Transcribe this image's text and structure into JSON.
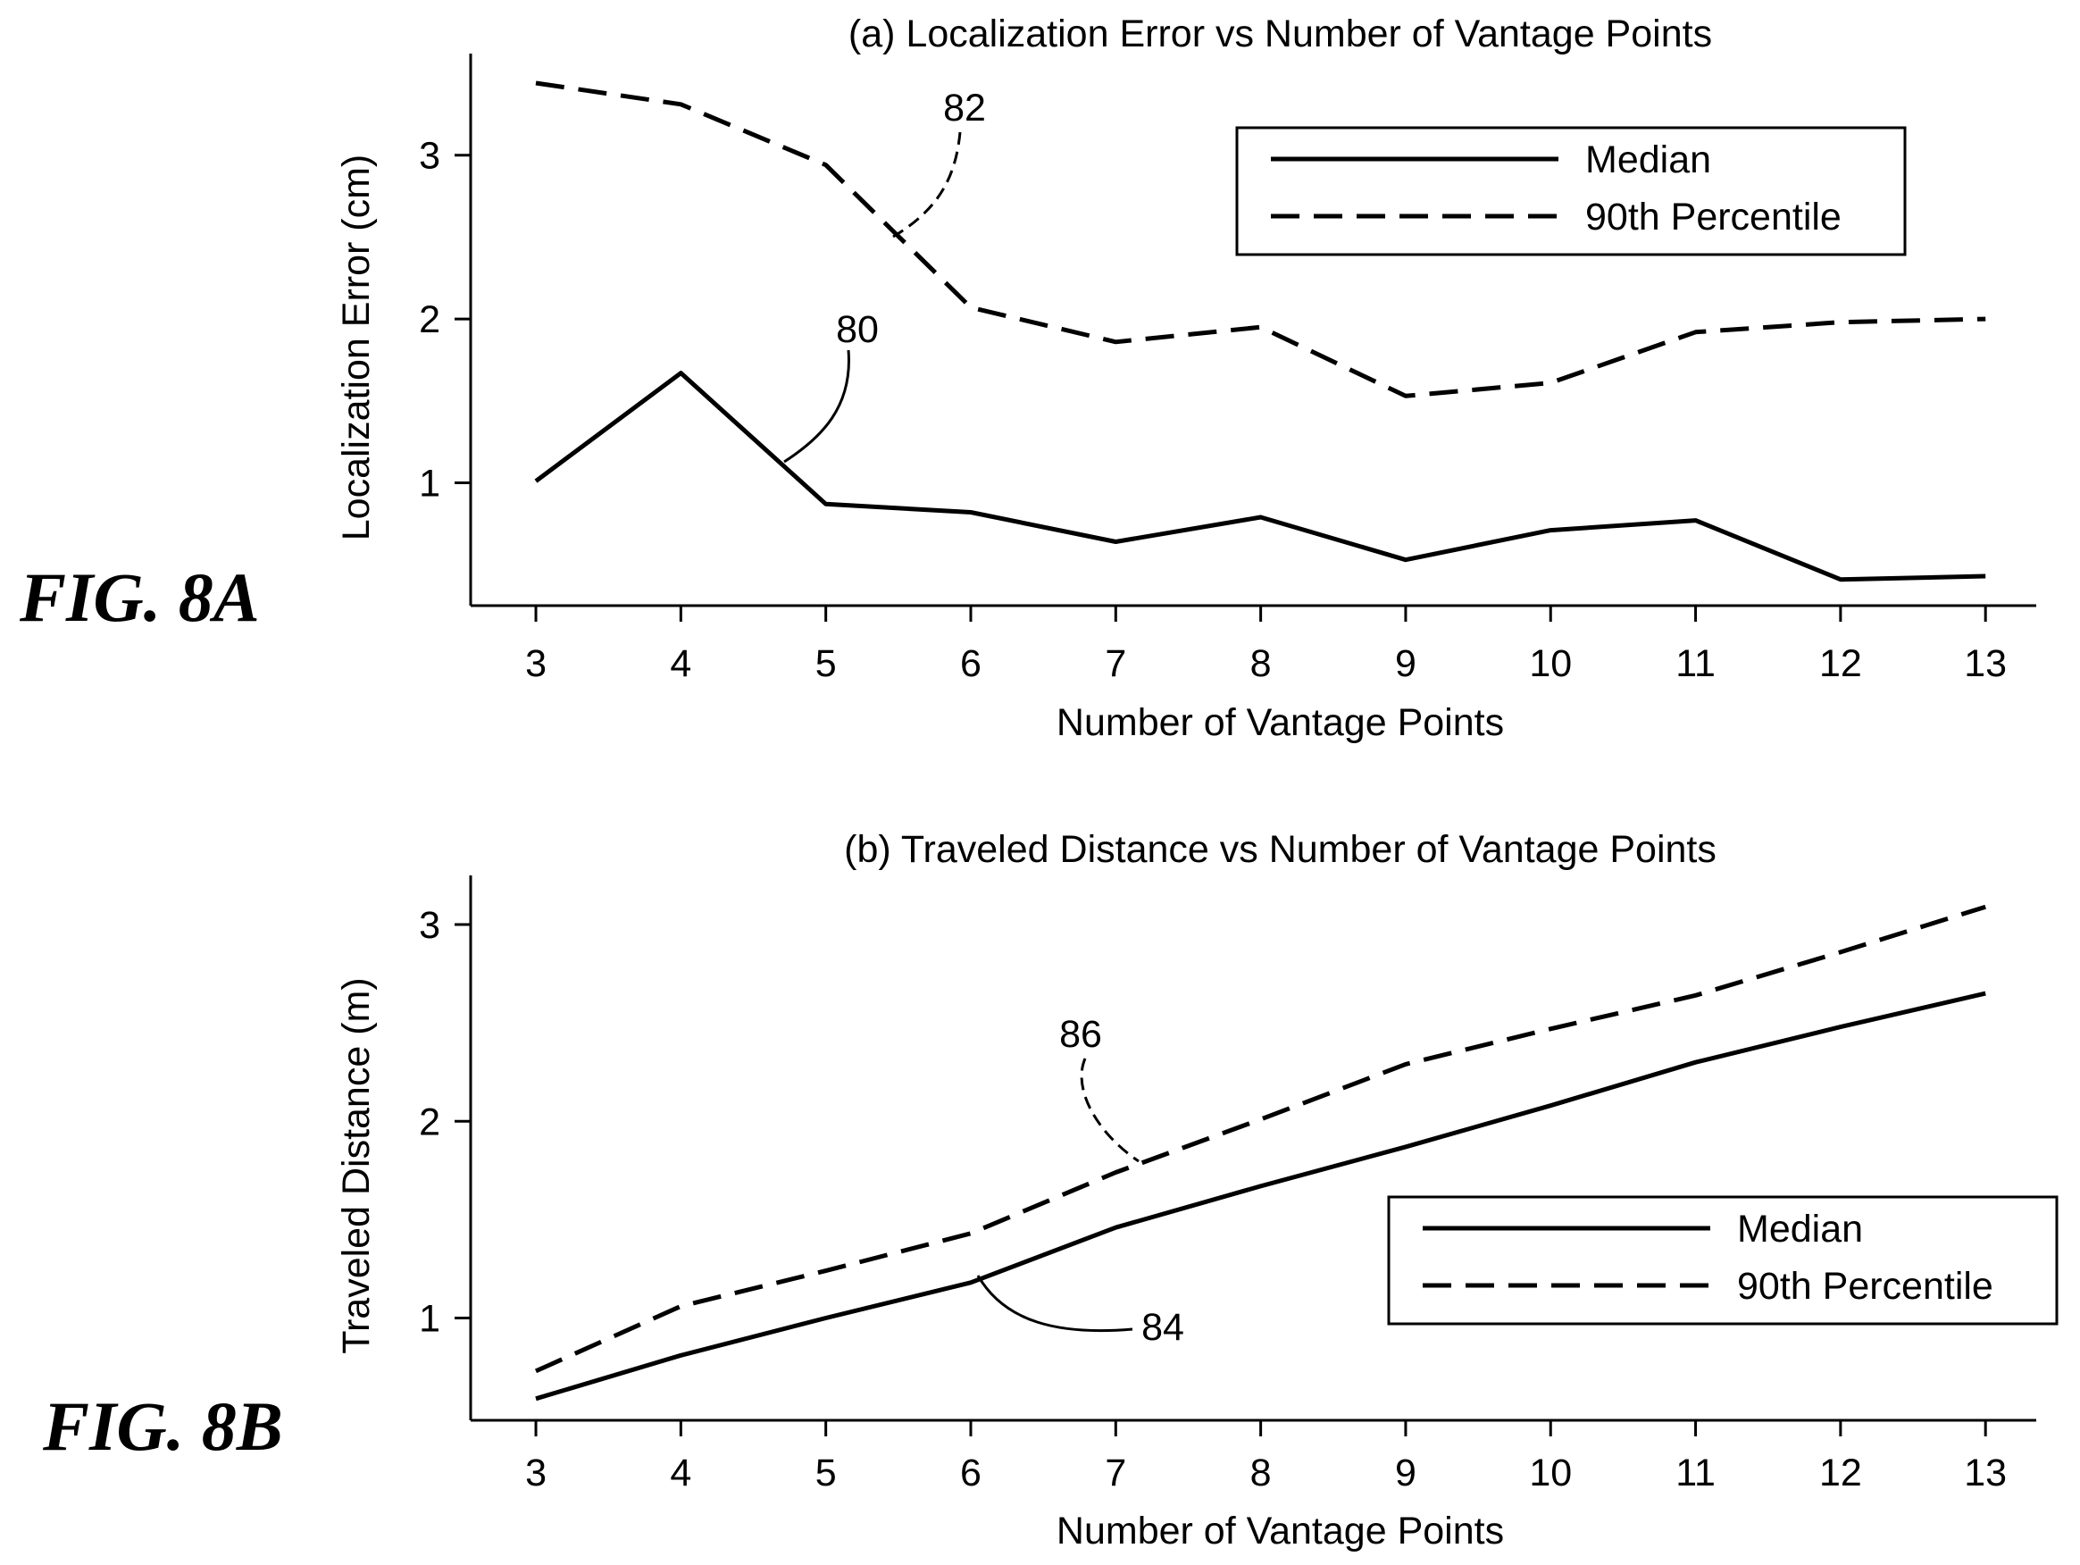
{
  "figure_labels": [
    "FIG. 8A",
    "FIG. 8B"
  ],
  "chart_data": [
    {
      "type": "line",
      "title": "(a) Localization Error vs Number of Vantage Points",
      "xlabel": "Number of Vantage Points",
      "ylabel": "Localization Error (cm)",
      "x": [
        3,
        4,
        5,
        6,
        7,
        8,
        9,
        10,
        11,
        12,
        13
      ],
      "xlim": [
        2.55,
        13.35
      ],
      "ylim": [
        0.25,
        3.62
      ],
      "xticks": [
        "3",
        "4",
        "5",
        "6",
        "7",
        "8",
        "9",
        "10",
        "11",
        "12",
        "13"
      ],
      "yticks": [
        "1",
        "2",
        "3"
      ],
      "grid": false,
      "legend_position": "top-right",
      "series": [
        {
          "name": "Median",
          "style": "solid",
          "values": [
            1.01,
            1.67,
            0.87,
            0.82,
            0.64,
            0.79,
            0.53,
            0.71,
            0.77,
            0.41,
            0.43
          ]
        },
        {
          "name": "90th Percentile",
          "style": "dashed",
          "values": [
            3.44,
            3.31,
            2.94,
            2.07,
            1.86,
            1.95,
            1.53,
            1.61,
            1.92,
            1.98,
            2.0
          ]
        }
      ],
      "annotations": [
        {
          "text": "80",
          "series": "Median"
        },
        {
          "text": "82",
          "series": "90th Percentile"
        }
      ]
    },
    {
      "type": "line",
      "title": "(b) Traveled Distance vs Number of Vantage Points",
      "xlabel": "Number of Vantage Points",
      "ylabel": "Traveled Distance (m)",
      "x": [
        3,
        4,
        5,
        6,
        7,
        8,
        9,
        10,
        11,
        12,
        13
      ],
      "xlim": [
        2.55,
        13.35
      ],
      "ylim": [
        0.48,
        3.25
      ],
      "xticks": [
        "3",
        "4",
        "5",
        "6",
        "7",
        "8",
        "9",
        "10",
        "11",
        "12",
        "13"
      ],
      "yticks": [
        "1",
        "2",
        "3"
      ],
      "grid": false,
      "legend_position": "bottom-right",
      "series": [
        {
          "name": "Median",
          "style": "solid",
          "values": [
            0.59,
            0.81,
            1.0,
            1.18,
            1.46,
            1.67,
            1.87,
            2.08,
            2.3,
            2.48,
            2.65
          ]
        },
        {
          "name": "90th Percentile",
          "style": "dashed",
          "values": [
            0.73,
            1.06,
            1.24,
            1.43,
            1.74,
            2.01,
            2.29,
            2.47,
            2.64,
            2.86,
            3.09
          ]
        }
      ],
      "annotations": [
        {
          "text": "84",
          "series": "Median"
        },
        {
          "text": "86",
          "series": "90th Percentile"
        }
      ]
    }
  ]
}
